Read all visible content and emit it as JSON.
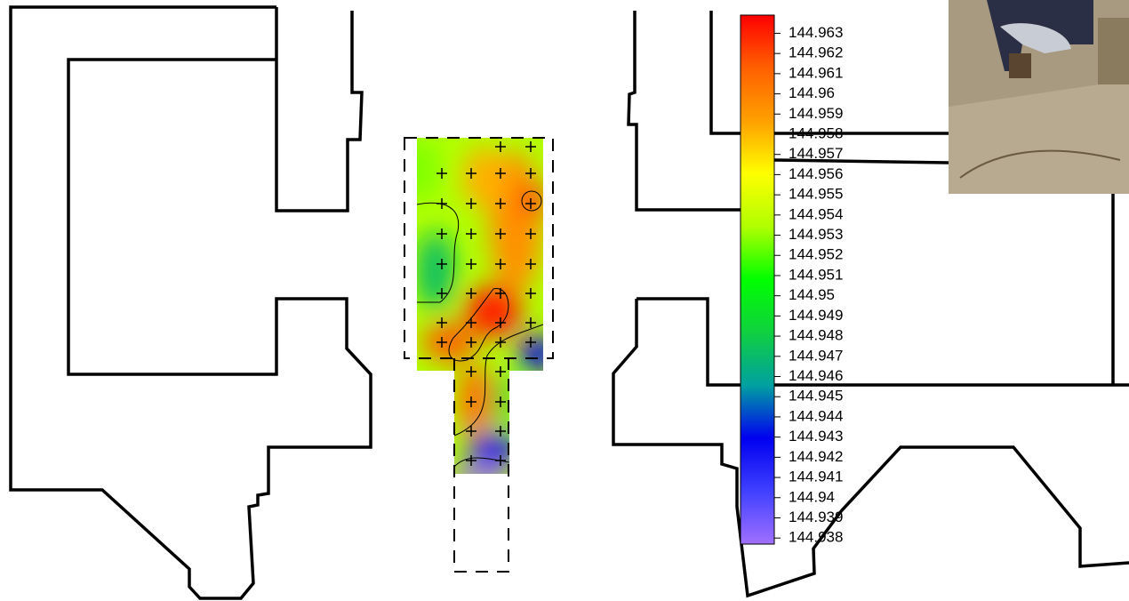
{
  "chart_data": {
    "type": "colorbar",
    "zlim": [
      144.9377,
      144.9639
    ],
    "zticks": [
      144.938,
      144.939,
      144.94,
      144.941,
      144.942,
      144.943,
      144.944,
      144.945,
      144.946,
      144.947,
      144.948,
      144.949,
      144.95,
      144.951,
      144.952,
      144.953,
      144.954,
      144.955,
      144.956,
      144.957,
      144.958,
      144.959,
      144.96,
      144.961,
      144.962,
      144.963
    ],
    "colormap": [
      "#a070ff",
      "#4040ff",
      "#0000f0",
      "#00a0a0",
      "#10d040",
      "#00ff00",
      "#b0ff00",
      "#ffff00",
      "#ffa000",
      "#ff6000",
      "#ff0000"
    ]
  }
}
